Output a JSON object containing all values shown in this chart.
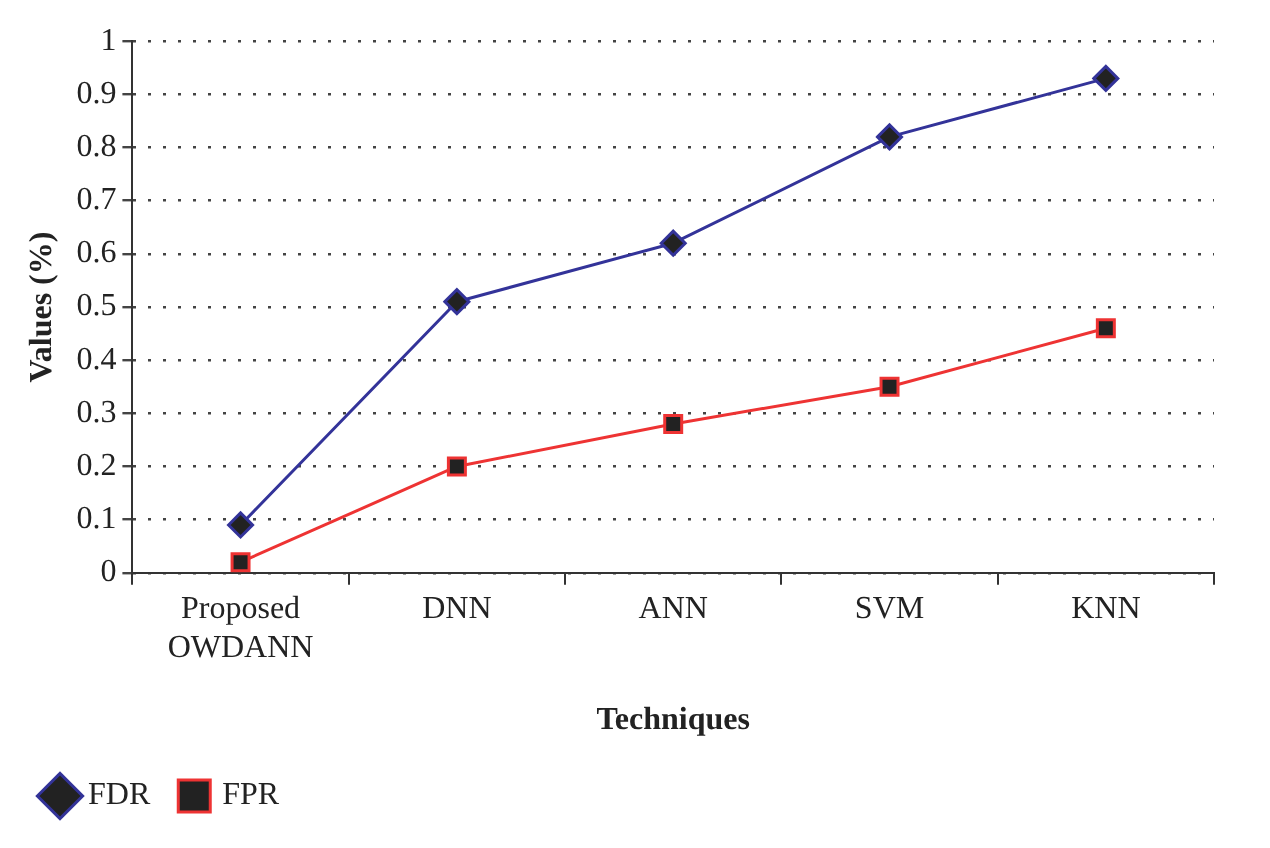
{
  "chart_data": {
    "type": "line",
    "xlabel": "Techniques",
    "ylabel": "Values (%)",
    "categories": [
      "Proposed OWDANN",
      "DNN",
      "ANN",
      "SVM",
      "KNN"
    ],
    "series": [
      {
        "name": "FDR",
        "color": "#333399",
        "marker": "diamond",
        "values": [
          0.09,
          0.51,
          0.62,
          0.82,
          0.93
        ]
      },
      {
        "name": "FPR",
        "color": "#ee3333",
        "marker": "square",
        "values": [
          0.02,
          0.2,
          0.28,
          0.35,
          0.46
        ]
      }
    ],
    "ylim": [
      0,
      1
    ],
    "yticks": [
      0,
      0.1,
      0.2,
      0.3,
      0.4,
      0.5,
      0.6,
      0.7,
      0.8,
      0.9,
      1
    ],
    "grid": "y",
    "legend": "bottom left",
    "line_style": "solid"
  }
}
